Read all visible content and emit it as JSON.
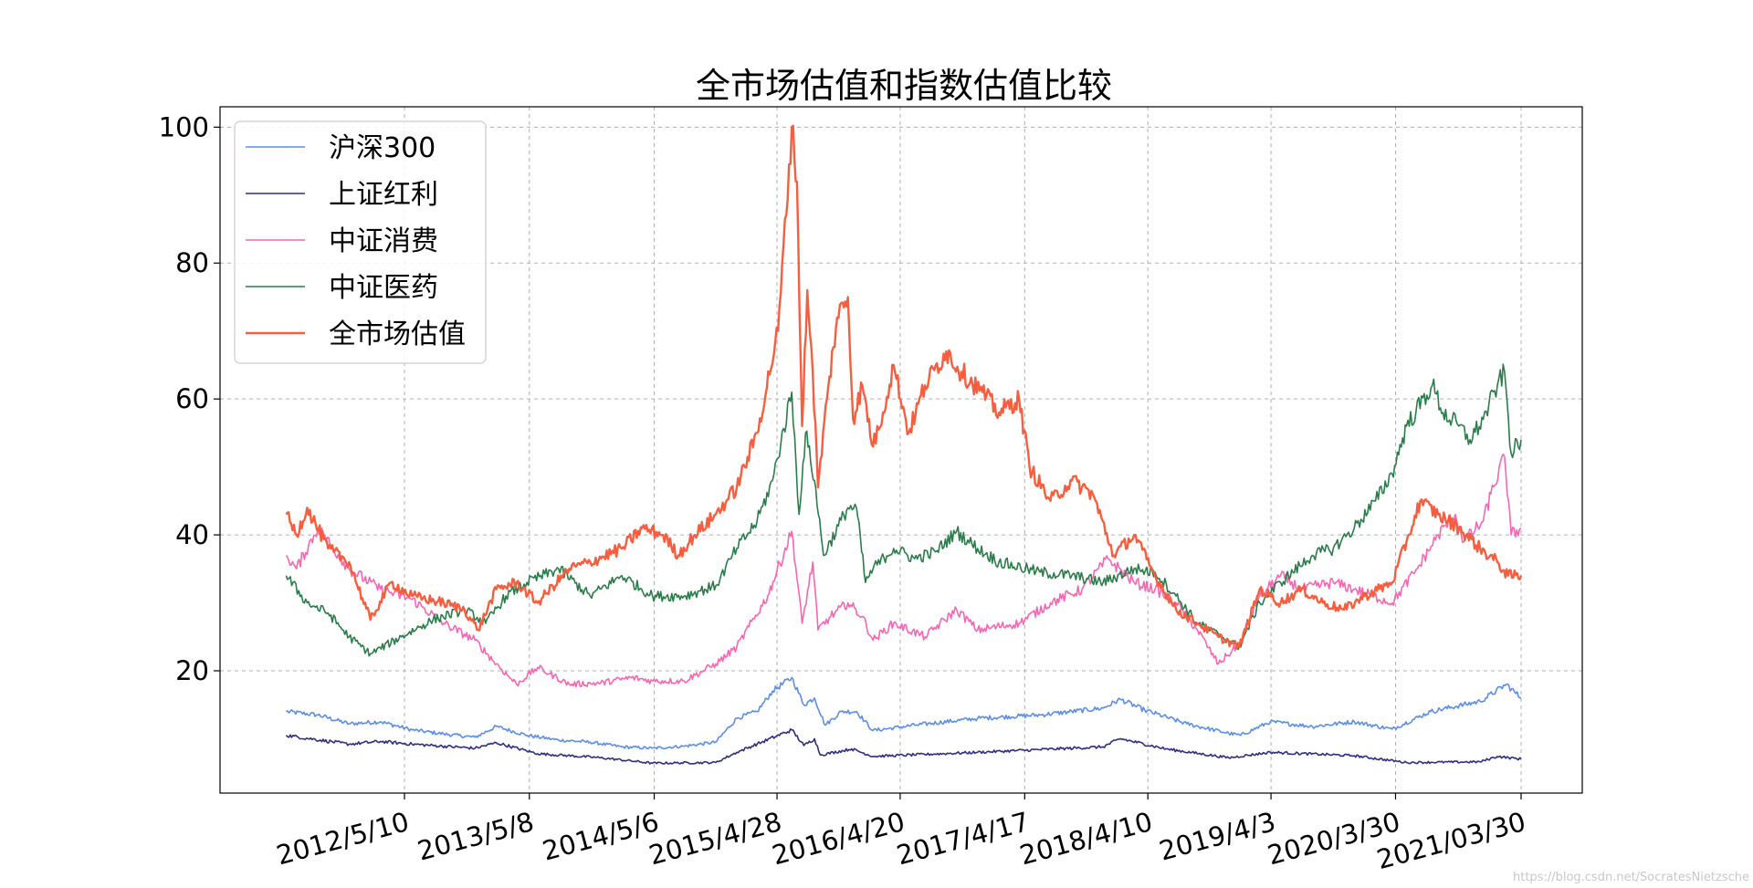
{
  "chart_data": {
    "type": "line",
    "title": "全市场估值和指数估值比较",
    "xlabel": "",
    "ylabel": "",
    "x_ticks": [
      "2012/5/10",
      "2013/5/8",
      "2014/5/6",
      "2015/4/28",
      "2016/4/20",
      "2017/4/17",
      "2018/4/10",
      "2019/4/3",
      "2020/3/30",
      "2021/03/30"
    ],
    "x_range": [
      "2011-06-01",
      "2021-03-30"
    ],
    "y_ticks": [
      20,
      40,
      60,
      80,
      100
    ],
    "ylim": [
      2,
      103
    ],
    "grid": true,
    "legend_position": "top-left",
    "series": [
      {
        "name": "沪深300",
        "color": "#5b8ee6",
        "points": [
          [
            "2011-06-01",
            14
          ],
          [
            "2011-09-01",
            13.5
          ],
          [
            "2011-12-01",
            12.2
          ],
          [
            "2012-03-01",
            12.5
          ],
          [
            "2012-06-01",
            11.3
          ],
          [
            "2012-09-01",
            10.7
          ],
          [
            "2012-12-01",
            10.2
          ],
          [
            "2013-02-01",
            11.8
          ],
          [
            "2013-05-01",
            10.5
          ],
          [
            "2013-08-01",
            9.8
          ],
          [
            "2013-11-01",
            9.5
          ],
          [
            "2014-02-01",
            8.8
          ],
          [
            "2014-05-01",
            8.6
          ],
          [
            "2014-08-01",
            8.9
          ],
          [
            "2014-11-01",
            9.5
          ],
          [
            "2015-01-01",
            13
          ],
          [
            "2015-03-01",
            14
          ],
          [
            "2015-04-15",
            17
          ],
          [
            "2015-06-10",
            19
          ],
          [
            "2015-07-15",
            15
          ],
          [
            "2015-08-15",
            16
          ],
          [
            "2015-09-15",
            12
          ],
          [
            "2015-11-01",
            14
          ],
          [
            "2015-12-15",
            14
          ],
          [
            "2016-02-01",
            11.2
          ],
          [
            "2016-06-01",
            12
          ],
          [
            "2016-12-01",
            13
          ],
          [
            "2017-06-01",
            13.5
          ],
          [
            "2017-12-01",
            14.5
          ],
          [
            "2018-01-20",
            15.8
          ],
          [
            "2018-04-01",
            14.2
          ],
          [
            "2018-08-01",
            12.2
          ],
          [
            "2018-12-01",
            10.8
          ],
          [
            "2019-01-05",
            10.5
          ],
          [
            "2019-04-01",
            12.5
          ],
          [
            "2019-08-01",
            11.8
          ],
          [
            "2019-12-01",
            12.5
          ],
          [
            "2020-03-20",
            11.4
          ],
          [
            "2020-07-10",
            14
          ],
          [
            "2020-12-01",
            15.5
          ],
          [
            "2021-02-15",
            18
          ],
          [
            "2021-03-30",
            16
          ]
        ]
      },
      {
        "name": "上证红利",
        "color": "#2e2f82",
        "points": [
          [
            "2011-06-01",
            10.5
          ],
          [
            "2011-12-01",
            9.2
          ],
          [
            "2012-03-01",
            9.6
          ],
          [
            "2012-06-01",
            9.2
          ],
          [
            "2012-12-01",
            8.6
          ],
          [
            "2013-02-01",
            9.4
          ],
          [
            "2013-06-01",
            7.8
          ],
          [
            "2013-12-01",
            7.2
          ],
          [
            "2014-05-01",
            6.4
          ],
          [
            "2014-11-01",
            6.5
          ],
          [
            "2015-01-01",
            8
          ],
          [
            "2015-06-10",
            11.3
          ],
          [
            "2015-07-15",
            9
          ],
          [
            "2015-08-15",
            10
          ],
          [
            "2015-09-01",
            7.6
          ],
          [
            "2015-12-01",
            8.5
          ],
          [
            "2016-02-01",
            7.4
          ],
          [
            "2016-12-01",
            8
          ],
          [
            "2017-12-01",
            8.8
          ],
          [
            "2018-01-20",
            10
          ],
          [
            "2018-06-01",
            8.5
          ],
          [
            "2018-12-01",
            7.2
          ],
          [
            "2019-04-01",
            8
          ],
          [
            "2019-12-01",
            7.5
          ],
          [
            "2020-05-01",
            6.5
          ],
          [
            "2020-12-01",
            6.6
          ],
          [
            "2021-01-20",
            7.4
          ],
          [
            "2021-03-30",
            7
          ]
        ]
      },
      {
        "name": "中证消费",
        "color": "#f765b3",
        "points": [
          [
            "2011-06-01",
            37
          ],
          [
            "2011-07-01",
            35
          ],
          [
            "2011-09-01",
            41
          ],
          [
            "2011-12-01",
            35
          ],
          [
            "2012-03-01",
            32
          ],
          [
            "2012-06-01",
            30.5
          ],
          [
            "2012-09-01",
            27
          ],
          [
            "2012-12-01",
            24.5
          ],
          [
            "2013-02-01",
            21
          ],
          [
            "2013-04-01",
            18
          ],
          [
            "2013-06-01",
            20.5
          ],
          [
            "2013-09-01",
            18
          ],
          [
            "2013-12-01",
            18.2
          ],
          [
            "2014-03-01",
            19
          ],
          [
            "2014-05-01",
            18.5
          ],
          [
            "2014-08-01",
            18.5
          ],
          [
            "2014-11-01",
            21
          ],
          [
            "2015-01-01",
            23.5
          ],
          [
            "2015-04-01",
            31
          ],
          [
            "2015-06-10",
            40.5
          ],
          [
            "2015-07-10",
            27
          ],
          [
            "2015-08-10",
            36
          ],
          [
            "2015-08-25",
            26
          ],
          [
            "2015-10-01",
            28
          ],
          [
            "2015-11-20",
            30
          ],
          [
            "2016-01-01",
            28
          ],
          [
            "2016-02-01",
            24.5
          ],
          [
            "2016-04-01",
            27
          ],
          [
            "2016-07-01",
            25
          ],
          [
            "2016-10-01",
            29
          ],
          [
            "2016-12-01",
            26
          ],
          [
            "2017-04-01",
            27
          ],
          [
            "2017-07-01",
            30
          ],
          [
            "2017-10-01",
            32
          ],
          [
            "2017-12-15",
            36.5
          ],
          [
            "2018-03-01",
            33
          ],
          [
            "2018-05-01",
            32
          ],
          [
            "2018-07-01",
            30
          ],
          [
            "2018-09-01",
            26
          ],
          [
            "2018-11-01",
            21
          ],
          [
            "2019-01-01",
            24
          ],
          [
            "2019-03-01",
            31
          ],
          [
            "2019-05-01",
            34
          ],
          [
            "2019-07-01",
            32
          ],
          [
            "2019-10-01",
            33
          ],
          [
            "2019-12-01",
            32
          ],
          [
            "2020-03-20",
            30
          ],
          [
            "2020-06-01",
            35
          ],
          [
            "2020-08-01",
            40
          ],
          [
            "2020-09-20",
            43
          ],
          [
            "2020-10-15",
            39
          ],
          [
            "2020-12-10",
            42
          ],
          [
            "2021-01-01",
            46
          ],
          [
            "2021-02-10",
            51.5
          ],
          [
            "2021-03-01",
            40
          ],
          [
            "2021-03-30",
            41
          ]
        ]
      },
      {
        "name": "中证医药",
        "color": "#2a7d4a",
        "points": [
          [
            "2011-06-01",
            34
          ],
          [
            "2011-08-01",
            30
          ],
          [
            "2011-10-01",
            28.5
          ],
          [
            "2011-12-01",
            25
          ],
          [
            "2012-02-01",
            22.5
          ],
          [
            "2012-05-01",
            25
          ],
          [
            "2012-08-01",
            27.5
          ],
          [
            "2012-11-01",
            29
          ],
          [
            "2013-01-01",
            27
          ],
          [
            "2013-03-01",
            31
          ],
          [
            "2013-05-01",
            33
          ],
          [
            "2013-08-01",
            35
          ],
          [
            "2013-11-01",
            31
          ],
          [
            "2014-02-01",
            34
          ],
          [
            "2014-05-01",
            31
          ],
          [
            "2014-08-01",
            31
          ],
          [
            "2014-11-01",
            32.5
          ],
          [
            "2015-01-01",
            38
          ],
          [
            "2015-03-01",
            42
          ],
          [
            "2015-04-15",
            48
          ],
          [
            "2015-06-10",
            61
          ],
          [
            "2015-07-01",
            43
          ],
          [
            "2015-07-20",
            55
          ],
          [
            "2015-08-15",
            48
          ],
          [
            "2015-09-10",
            37
          ],
          [
            "2015-11-20",
            44
          ],
          [
            "2015-12-15",
            44
          ],
          [
            "2016-01-10",
            33
          ],
          [
            "2016-02-01",
            35
          ],
          [
            "2016-04-01",
            38
          ],
          [
            "2016-06-01",
            36.5
          ],
          [
            "2016-08-01",
            37.5
          ],
          [
            "2016-10-01",
            40.5
          ],
          [
            "2016-12-01",
            38
          ],
          [
            "2017-02-01",
            36
          ],
          [
            "2017-06-01",
            34.5
          ],
          [
            "2017-09-01",
            34
          ],
          [
            "2017-12-01",
            33
          ],
          [
            "2018-03-01",
            35
          ],
          [
            "2018-05-01",
            34.5
          ],
          [
            "2018-07-01",
            31
          ],
          [
            "2018-09-01",
            27
          ],
          [
            "2018-12-01",
            24.5
          ],
          [
            "2019-01-01",
            23.5
          ],
          [
            "2019-03-01",
            30
          ],
          [
            "2019-05-01",
            33
          ],
          [
            "2019-08-01",
            37
          ],
          [
            "2019-10-01",
            38
          ],
          [
            "2019-12-01",
            41
          ],
          [
            "2020-02-01",
            45
          ],
          [
            "2020-03-20",
            49
          ],
          [
            "2020-05-01",
            56
          ],
          [
            "2020-07-15",
            62
          ],
          [
            "2020-08-15",
            58
          ],
          [
            "2020-09-30",
            56
          ],
          [
            "2020-11-01",
            54
          ],
          [
            "2020-12-10",
            57
          ],
          [
            "2021-01-20",
            62
          ],
          [
            "2021-02-10",
            64
          ],
          [
            "2021-03-01",
            52
          ],
          [
            "2021-03-30",
            54
          ]
        ]
      },
      {
        "name": "全市场估值",
        "color": "#f75e3f",
        "points": [
          [
            "2011-06-01",
            43
          ],
          [
            "2011-07-01",
            40
          ],
          [
            "2011-08-01",
            44
          ],
          [
            "2011-10-01",
            38
          ],
          [
            "2011-12-01",
            36
          ],
          [
            "2012-02-01",
            27.5
          ],
          [
            "2012-04-01",
            33
          ],
          [
            "2012-06-01",
            31
          ],
          [
            "2012-09-01",
            30
          ],
          [
            "2012-11-01",
            29
          ],
          [
            "2012-12-10",
            26
          ],
          [
            "2013-02-01",
            32
          ],
          [
            "2013-04-01",
            33
          ],
          [
            "2013-06-01",
            30
          ],
          [
            "2013-09-01",
            35
          ],
          [
            "2013-11-01",
            36
          ],
          [
            "2014-02-01",
            38
          ],
          [
            "2014-04-01",
            41
          ],
          [
            "2014-06-01",
            40
          ],
          [
            "2014-07-15",
            37
          ],
          [
            "2014-09-01",
            40
          ],
          [
            "2014-11-01",
            43
          ],
          [
            "2015-01-01",
            47
          ],
          [
            "2015-03-01",
            55
          ],
          [
            "2015-05-01",
            70
          ],
          [
            "2015-06-10",
            100
          ],
          [
            "2015-06-25",
            92
          ],
          [
            "2015-07-10",
            56
          ],
          [
            "2015-07-25",
            76
          ],
          [
            "2015-08-10",
            64
          ],
          [
            "2015-08-25",
            47
          ],
          [
            "2015-09-20",
            60
          ],
          [
            "2015-10-20",
            72
          ],
          [
            "2015-11-20",
            75
          ],
          [
            "2015-12-05",
            57
          ],
          [
            "2016-01-01",
            62
          ],
          [
            "2016-02-01",
            53
          ],
          [
            "2016-03-01",
            58
          ],
          [
            "2016-04-01",
            65
          ],
          [
            "2016-05-15",
            55
          ],
          [
            "2016-07-01",
            62
          ],
          [
            "2016-09-01",
            67
          ],
          [
            "2016-10-15",
            64
          ],
          [
            "2016-12-15",
            61
          ],
          [
            "2017-02-01",
            58
          ],
          [
            "2017-04-01",
            60
          ],
          [
            "2017-05-01",
            50
          ],
          [
            "2017-07-01",
            45
          ],
          [
            "2017-09-01",
            48
          ],
          [
            "2017-11-01",
            46
          ],
          [
            "2018-01-01",
            37
          ],
          [
            "2018-03-01",
            40
          ],
          [
            "2018-05-01",
            34
          ],
          [
            "2018-07-01",
            29
          ],
          [
            "2018-09-01",
            27
          ],
          [
            "2018-11-01",
            25
          ],
          [
            "2019-01-01",
            23.5
          ],
          [
            "2019-03-01",
            32
          ],
          [
            "2019-05-01",
            30
          ],
          [
            "2019-07-01",
            32
          ],
          [
            "2019-09-01",
            30
          ],
          [
            "2019-11-01",
            29
          ],
          [
            "2020-01-01",
            31
          ],
          [
            "2020-03-20",
            33
          ],
          [
            "2020-05-01",
            39
          ],
          [
            "2020-06-10",
            45
          ],
          [
            "2020-08-01",
            43
          ],
          [
            "2020-10-01",
            41
          ],
          [
            "2020-12-01",
            38
          ],
          [
            "2021-01-20",
            36
          ],
          [
            "2021-02-20",
            34
          ],
          [
            "2021-03-30",
            34
          ]
        ]
      }
    ]
  },
  "watermark": "https://blog.csdn.net/SocratesNietzsche"
}
